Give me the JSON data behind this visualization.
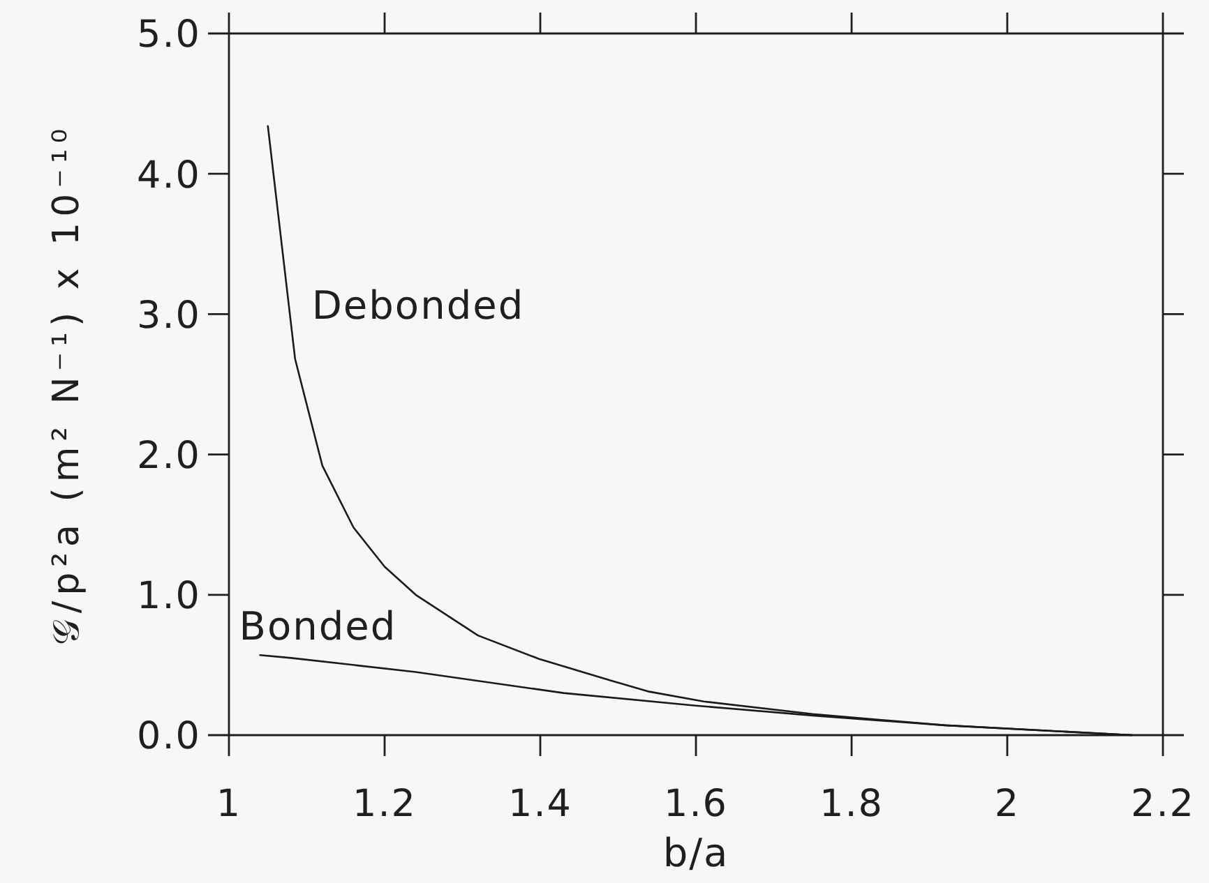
{
  "chart_data": {
    "type": "line",
    "xlabel": "b/a",
    "ylabel": "𝒢/p²a (m² N⁻¹) x 10⁻¹⁰",
    "xlim": [
      1,
      2.2
    ],
    "ylim": [
      0,
      5
    ],
    "xticks": [
      1,
      1.2,
      1.4,
      1.6,
      1.8,
      2,
      2.2
    ],
    "yticks": [
      {
        "value": 0,
        "label": "0.0"
      },
      {
        "value": 1,
        "label": "1.0"
      },
      {
        "value": 2,
        "label": "2.0"
      },
      {
        "value": 3,
        "label": "3.0"
      },
      {
        "value": 4,
        "label": "4.0"
      },
      {
        "value": 5,
        "label": "5.0"
      }
    ],
    "line_style": "solid",
    "series": [
      {
        "name": "Debonded",
        "color": "#1a1a1a",
        "x": [
          1.05,
          1.085,
          1.12,
          1.16,
          1.2,
          1.24,
          1.32,
          1.4,
          1.49,
          1.54,
          1.61,
          1.75,
          1.92,
          2.16
        ],
        "values": [
          4.34,
          2.68,
          1.92,
          1.48,
          1.2,
          1.0,
          0.71,
          0.54,
          0.39,
          0.31,
          0.24,
          0.15,
          0.07,
          0.0
        ]
      },
      {
        "name": "Bonded",
        "color": "#1a1a1a",
        "x": [
          1.04,
          1.08,
          1.24,
          1.43,
          1.6,
          1.75,
          1.92,
          2.16
        ],
        "values": [
          0.57,
          0.55,
          0.45,
          0.3,
          0.21,
          0.14,
          0.07,
          0.0
        ]
      }
    ]
  }
}
